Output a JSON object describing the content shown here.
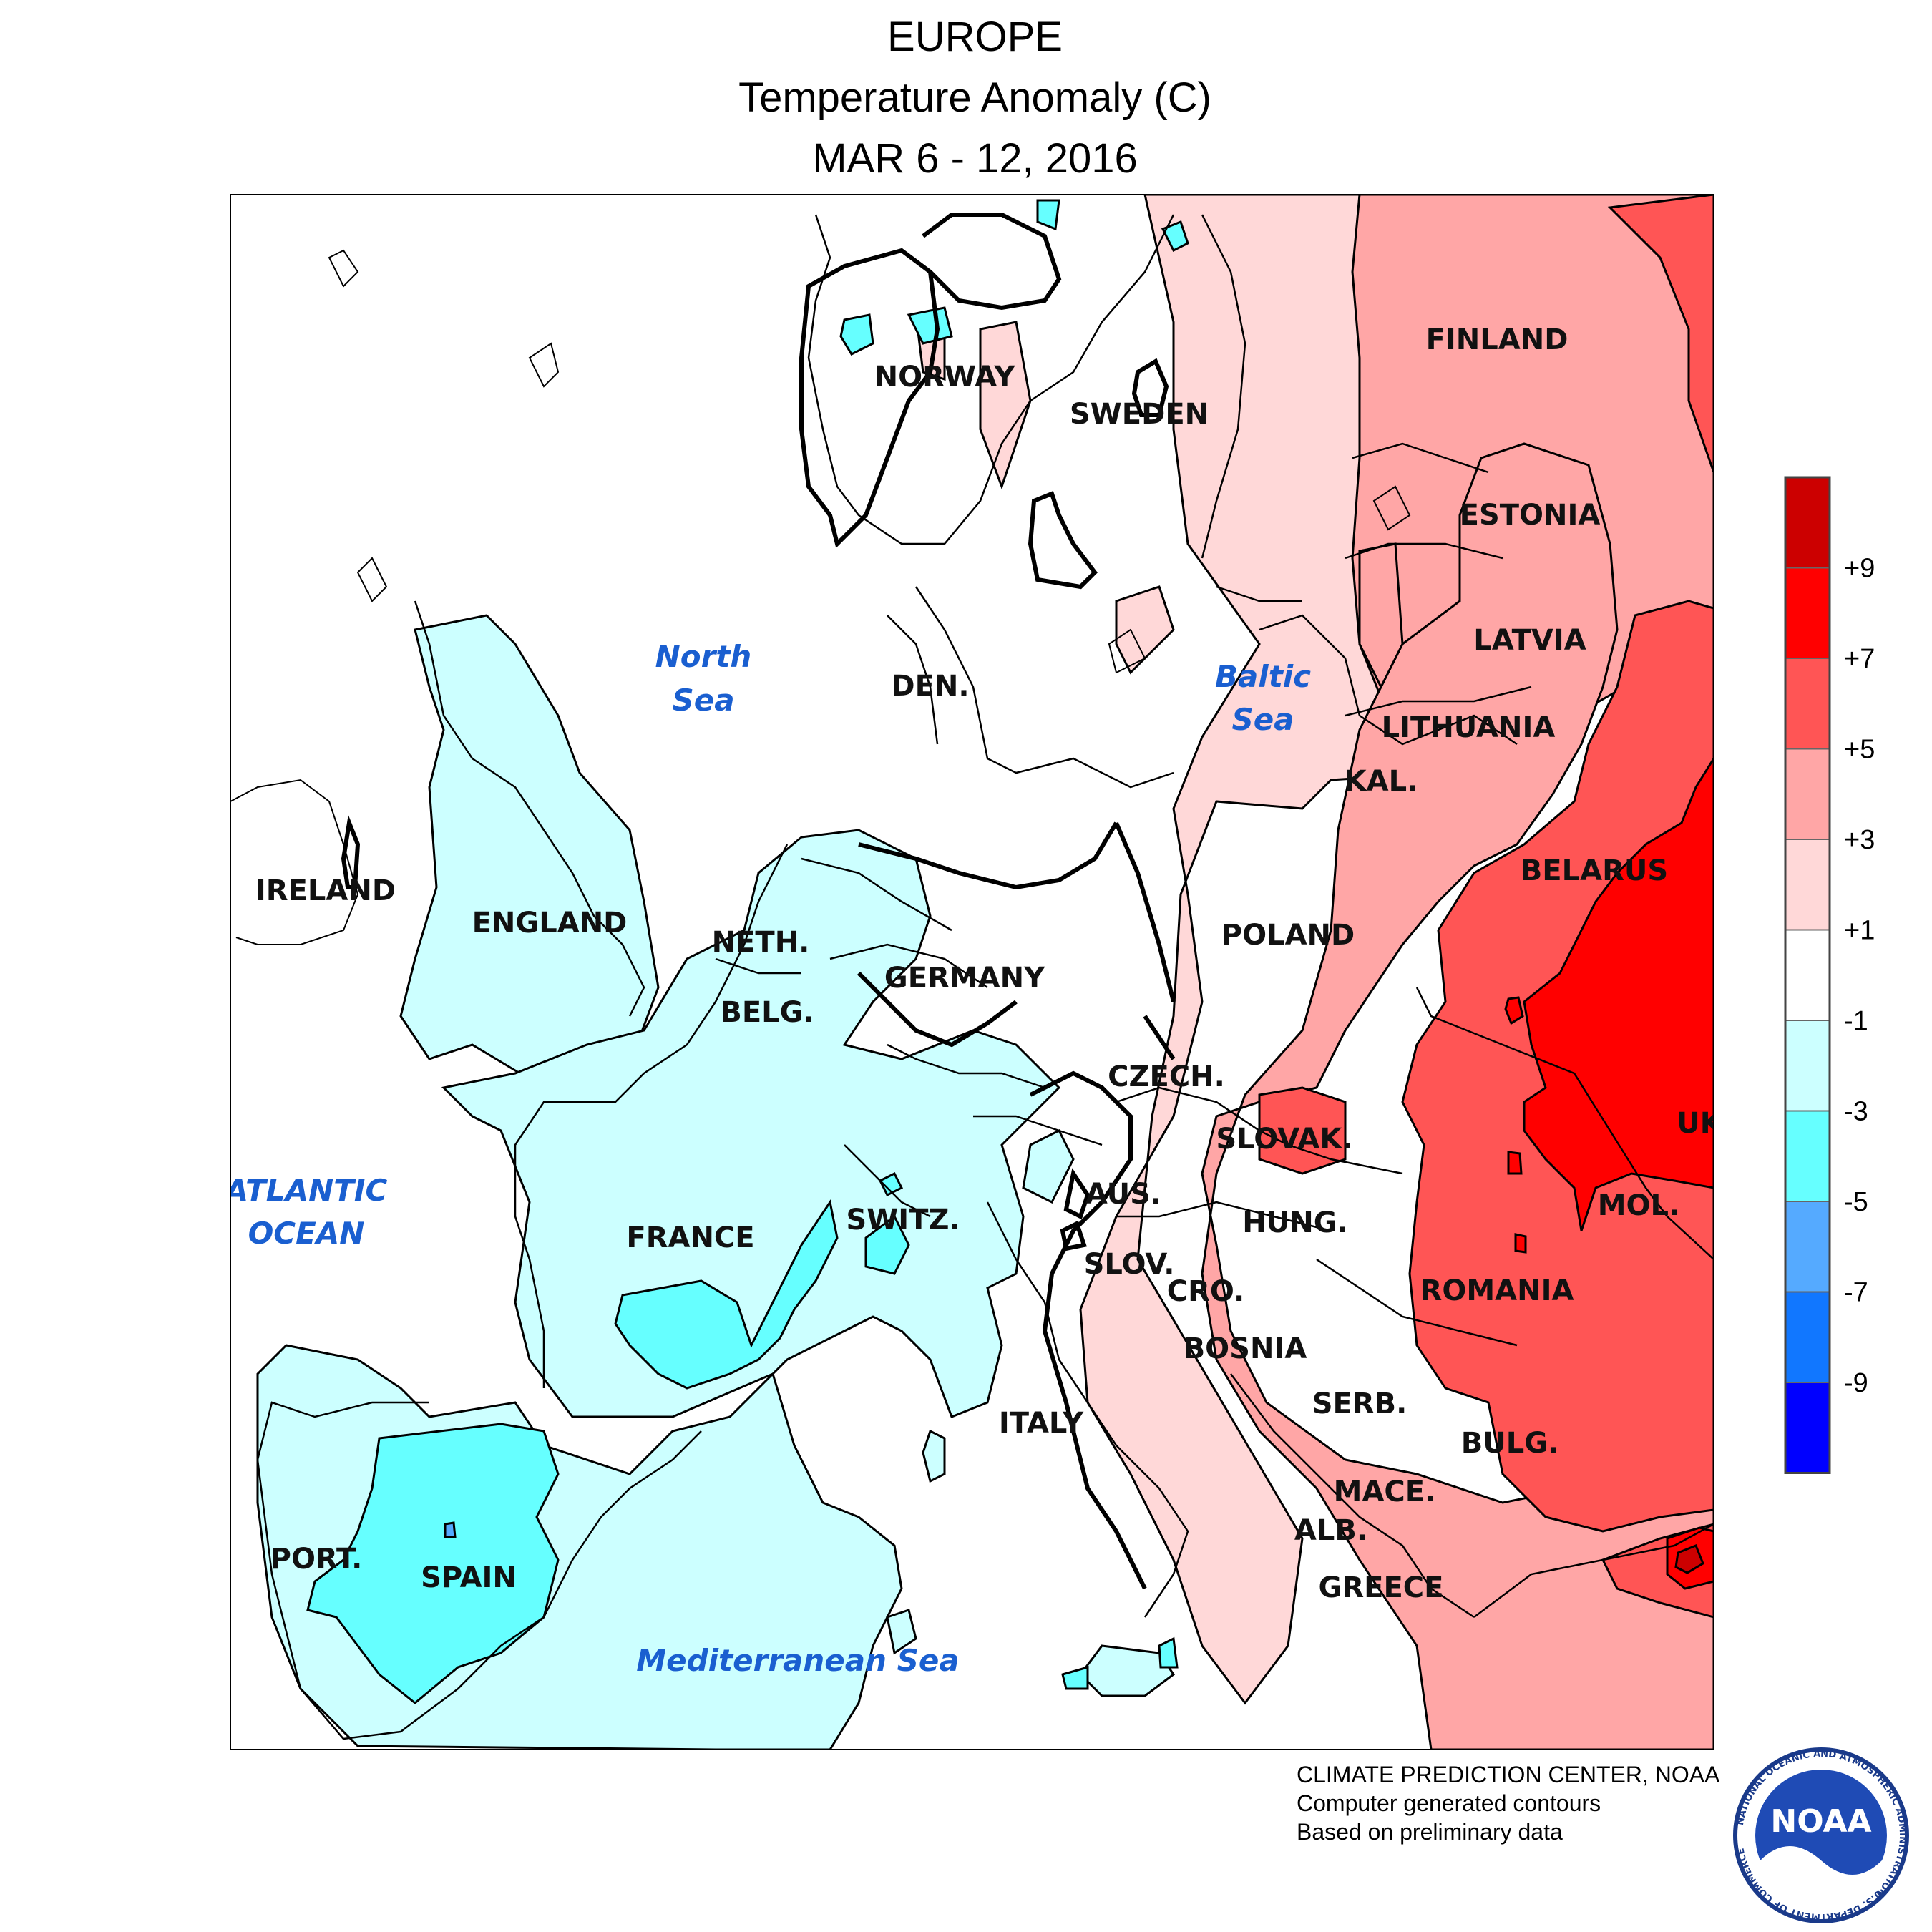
{
  "title": {
    "line1": "EUROPE",
    "line2": "Temperature Anomaly (C)",
    "line3": "MAR 6 - 12, 2016"
  },
  "legend": {
    "ticks": [
      "+9",
      "+7",
      "+5",
      "+3",
      "+1",
      "-1",
      "-3",
      "-5",
      "-7",
      "-9"
    ],
    "colors": [
      "#cc0000",
      "#ff0000",
      "#ff5555",
      "#ffa6a6",
      "#ffd8d8",
      "#ffffff",
      "#ccffff",
      "#66ffff",
      "#55aaff",
      "#1177ff",
      "#0000ff"
    ]
  },
  "map": {
    "countries": {
      "finland": "FINLAND",
      "norway": "NORWAY",
      "sweden": "SWEDEN",
      "estonia": "ESTONIA",
      "latvia": "LATVIA",
      "lithuania": "LITHUANIA",
      "kal": "KAL.",
      "den": "DEN.",
      "ireland": "IRELAND",
      "england": "ENGLAND",
      "neth": "NETH.",
      "belg": "BELG.",
      "germany": "GERMANY",
      "poland": "POLAND",
      "belarus": "BELARUS",
      "czech": "CZECH.",
      "slovak": "SLOVAK.",
      "uk": "UK",
      "aus": "AUS.",
      "hung": "HUNG.",
      "mol": "MOL.",
      "switz": "SWITZ.",
      "france": "FRANCE",
      "slov": "SLOV.",
      "cro": "CRO.",
      "romania": "ROMANIA",
      "bosnia": "BOSNIA",
      "serb": "SERB.",
      "italy": "ITALY",
      "bulg": "BULG.",
      "mace": "MACE.",
      "alb": "ALB.",
      "port": "PORT.",
      "spain": "SPAIN",
      "greece": "GREECE"
    },
    "seas": {
      "north_1": "North",
      "north_2": "Sea",
      "baltic_1": "Baltic",
      "baltic_2": "Sea",
      "atlantic_1": "ATLANTIC",
      "atlantic_2": "OCEAN",
      "mediterranean": "Mediterranean Sea"
    }
  },
  "credits": {
    "line1": "CLIMATE PREDICTION CENTER, NOAA",
    "line2": "Computer generated contours",
    "line3": "Based on preliminary data"
  },
  "logo": {
    "text": "NOAA",
    "ring_top": "NATIONAL OCEANIC AND ATMOSPHERIC ADMINISTRATION",
    "ring_bottom": "U.S. DEPARTMENT OF COMMERCE"
  }
}
